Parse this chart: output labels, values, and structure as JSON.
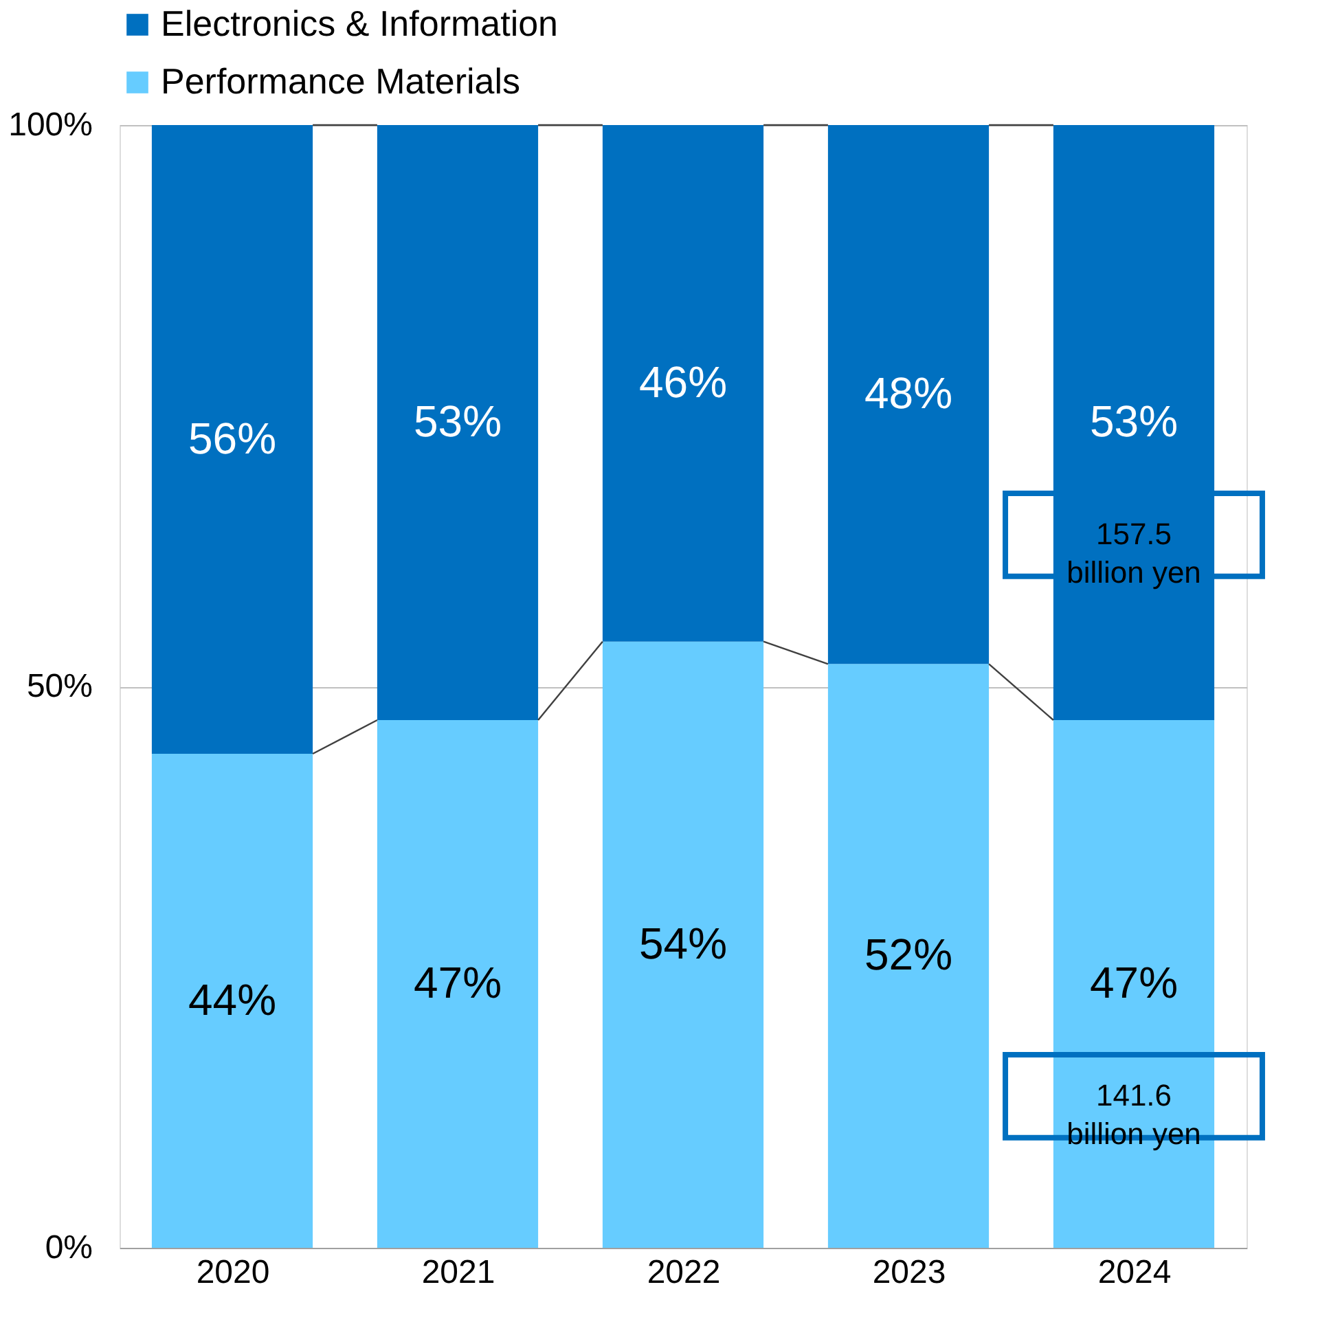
{
  "chart_data": {
    "type": "bar",
    "stacked": true,
    "grid": "y",
    "legend": "top",
    "categories": [
      "2020",
      "2021",
      "2022",
      "2023",
      "2024"
    ],
    "series": [
      {
        "name": "Performance Materials",
        "color": "#66ccff",
        "values": [
          44,
          47,
          54,
          52,
          47
        ],
        "value_labels": [
          "44%",
          "47%",
          "54%",
          "52%",
          "47%"
        ]
      },
      {
        "name": "Electronics & Information",
        "color": "#0070c0",
        "values": [
          56,
          53,
          46,
          48,
          53
        ],
        "value_labels": [
          "56%",
          "53%",
          "46%",
          "48%",
          "53%"
        ]
      }
    ],
    "ylim": [
      0,
      100
    ],
    "yticks": [
      {
        "value": 0,
        "label": "0%"
      },
      {
        "value": 50,
        "label": "50%"
      },
      {
        "value": 100,
        "label": "100%"
      }
    ],
    "annotations": [
      "157.5\nbillion yen",
      "141.6\nbillion yen"
    ]
  }
}
